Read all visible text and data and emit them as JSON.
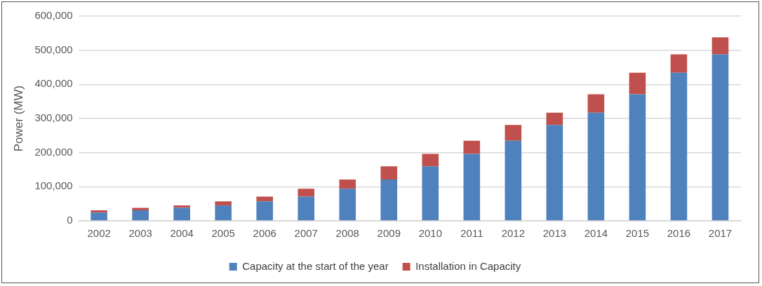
{
  "chart_data": {
    "type": "bar",
    "stacked": true,
    "ylabel": "Power (MW)",
    "categories": [
      "2002",
      "2003",
      "2004",
      "2005",
      "2006",
      "2007",
      "2008",
      "2009",
      "2010",
      "2011",
      "2012",
      "2013",
      "2014",
      "2015",
      "2016",
      "2017"
    ],
    "series": [
      {
        "name": "Capacity at the start of the year",
        "color": "#4f81bd",
        "values": [
          24000,
          31000,
          38000,
          45000,
          57000,
          71000,
          94000,
          121000,
          160000,
          196000,
          235000,
          281000,
          317000,
          371000,
          434000,
          488000
        ]
      },
      {
        "name": "Installation in Capacity",
        "color": "#c0504d",
        "values": [
          7000,
          7000,
          7000,
          12000,
          14000,
          23000,
          27000,
          39000,
          36000,
          39000,
          46000,
          36000,
          54000,
          63000,
          54000,
          50000
        ]
      }
    ],
    "ylim": [
      0,
      600000
    ],
    "yticks": [
      0,
      {
        "value": 100000,
        "label": "100,000"
      },
      {
        "value": 200000,
        "label": "200,000"
      },
      {
        "value": 300000,
        "label": "300,000"
      },
      {
        "value": 400000,
        "label": "400,000"
      },
      {
        "value": 500000,
        "label": "500,000"
      },
      {
        "value": 600000,
        "label": "600,000"
      }
    ],
    "grid": "y",
    "legend": "bottom"
  }
}
